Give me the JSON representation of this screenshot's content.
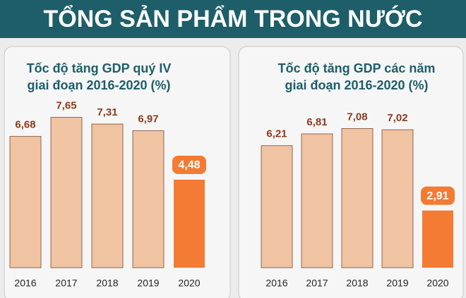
{
  "header": {
    "title": "TỔNG SẢN PHẨM TRONG NƯỚC"
  },
  "chart_data": [
    {
      "type": "bar",
      "title": [
        "Tốc độ tăng GDP quý IV",
        "giai đoạn 2016-2020 (%)"
      ],
      "categories": [
        "2016",
        "2017",
        "2018",
        "2019",
        "2020"
      ],
      "values": [
        6.68,
        7.65,
        7.31,
        6.97,
        4.48
      ],
      "value_labels": [
        "6,68",
        "7,65",
        "7,31",
        "6,97",
        "4,48"
      ],
      "colors": [
        "#f0c3a3",
        "#f0c3a3",
        "#f0c3a3",
        "#f0c3a3",
        "#f47b33"
      ]
    },
    {
      "type": "bar",
      "title": [
        "Tốc độ tăng GDP các năm",
        "giai đoạn 2016-2020 (%)"
      ],
      "categories": [
        "2016",
        "2017",
        "2018",
        "2019",
        "2020"
      ],
      "values": [
        6.21,
        6.81,
        7.08,
        7.02,
        2.91
      ],
      "value_labels": [
        "6,21",
        "6,81",
        "7,08",
        "7,02",
        "2,91"
      ],
      "colors": [
        "#f0c3a3",
        "#f0c3a3",
        "#f0c3a3",
        "#f0c3a3",
        "#f47b33"
      ]
    }
  ]
}
